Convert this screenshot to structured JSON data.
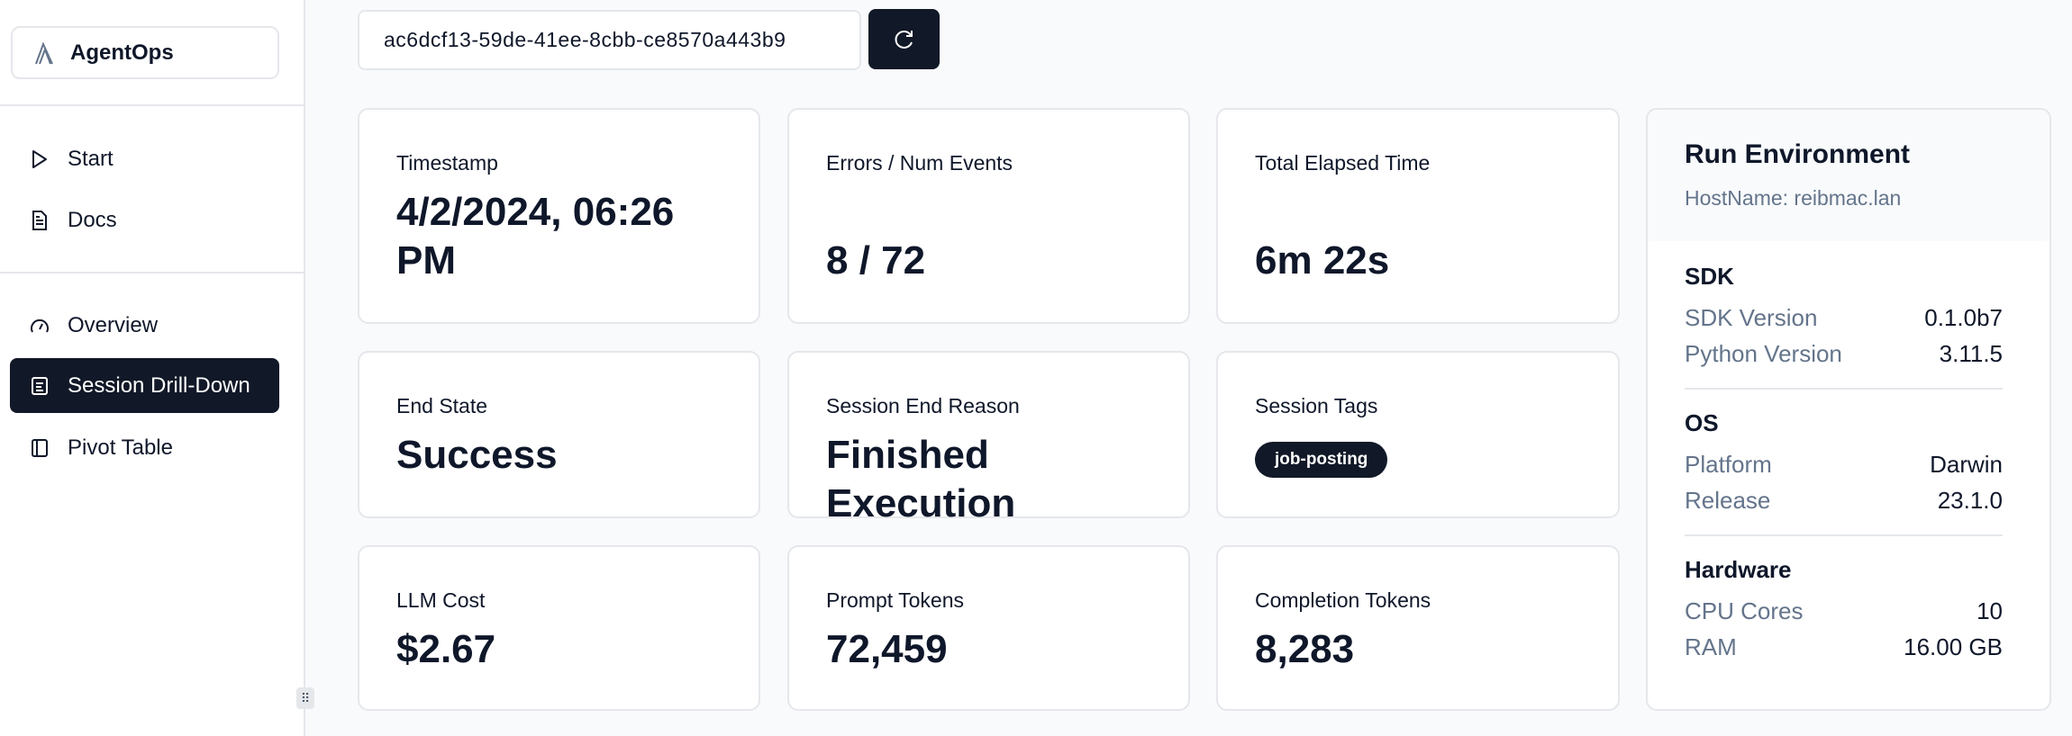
{
  "sidebar": {
    "brand": "AgentOps",
    "items": [
      {
        "label": "Start",
        "icon": "play-icon"
      },
      {
        "label": "Docs",
        "icon": "document-icon"
      },
      {
        "label": "Overview",
        "icon": "gauge-icon"
      },
      {
        "label": "Session Drill-Down",
        "icon": "list-icon",
        "active": true
      },
      {
        "label": "Pivot Table",
        "icon": "panel-icon"
      }
    ]
  },
  "session": {
    "id": "ac6dcf13-59de-41ee-8cbb-ce8570a443b9"
  },
  "cards": {
    "timestamp": {
      "label": "Timestamp",
      "value": "4/2/2024, 06:26 PM"
    },
    "errors": {
      "label": "Errors / Num Events",
      "value": "8 / 72"
    },
    "elapsed": {
      "label": "Total Elapsed Time",
      "value": "6m 22s"
    },
    "end_state": {
      "label": "End State",
      "value": "Success"
    },
    "end_reason": {
      "label": "Session End Reason",
      "value": "Finished Execution"
    },
    "tags": {
      "label": "Session Tags",
      "tags": [
        "job-posting"
      ]
    },
    "cost": {
      "label": "LLM Cost",
      "value": "$2.67"
    },
    "prompt": {
      "label": "Prompt Tokens",
      "value": "72,459"
    },
    "completion": {
      "label": "Completion Tokens",
      "value": "8,283"
    }
  },
  "env": {
    "title": "Run Environment",
    "hostname": "HostName: reibmac.lan",
    "sdk": {
      "title": "SDK",
      "rows": [
        {
          "k": "SDK Version",
          "v": "0.1.0b7"
        },
        {
          "k": "Python Version",
          "v": "3.11.5"
        }
      ]
    },
    "os": {
      "title": "OS",
      "rows": [
        {
          "k": "Platform",
          "v": "Darwin"
        },
        {
          "k": "Release",
          "v": "23.1.0"
        }
      ]
    },
    "hardware": {
      "title": "Hardware",
      "rows": [
        {
          "k": "CPU Cores",
          "v": "10"
        },
        {
          "k": "RAM",
          "v": "16.00 GB"
        }
      ]
    }
  },
  "colors": {
    "accent": "#111827",
    "muted": "#64748b",
    "border": "#e5e7eb"
  }
}
